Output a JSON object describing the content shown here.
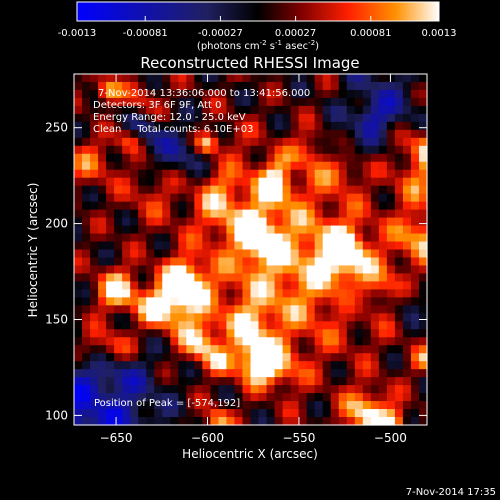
{
  "chart_data": {
    "type": "heatmap",
    "title": "Reconstructed RHESSI Image",
    "xlabel": "Heliocentric X (arcsec)",
    "ylabel": "Heliocentric Y (arcsec)",
    "xlim": [
      -673,
      -480
    ],
    "ylim": [
      95,
      278
    ],
    "xticks": [
      -650,
      -600,
      -550,
      -500
    ],
    "yticks": [
      100,
      150,
      200,
      250
    ],
    "colorbar": {
      "min": -0.0013,
      "max": 0.0013,
      "tick_values": [
        -0.0013,
        -0.00081,
        -0.00027,
        0.00027,
        0.00081,
        0.0013
      ],
      "tick_labels": [
        "-0.0013",
        "-0.00081",
        "-0.00027",
        "0.00027",
        "0.00081",
        "0.0013"
      ],
      "units_prefix": "(photons cm",
      "units_exp1": "-2",
      "units_mid": " s",
      "units_exp2": "-1",
      "units_mid2": " asec",
      "units_exp3": "-2",
      "units_suffix": ")"
    },
    "annotations": {
      "time_range": "7-Nov-2014 13:36:06.000 to 13:41:56.000",
      "detectors": "Detectors: 3F 6F 9F, Att 0",
      "energy": "Energy Range: 12.0 - 25.0 keV",
      "clean": "Clean     Total counts: 6.10E+03",
      "peak": "Position of Peak = [-574,192]"
    },
    "peak": {
      "x": -574,
      "y": 192,
      "value": 0.0013
    },
    "grid": false,
    "colormap": [
      "#0000ff",
      "#000000",
      "#7a0000",
      "#ff2000",
      "#ff9000",
      "#ffffff"
    ]
  },
  "footer": {
    "timestamp": "7-Nov-2014 17:35"
  }
}
